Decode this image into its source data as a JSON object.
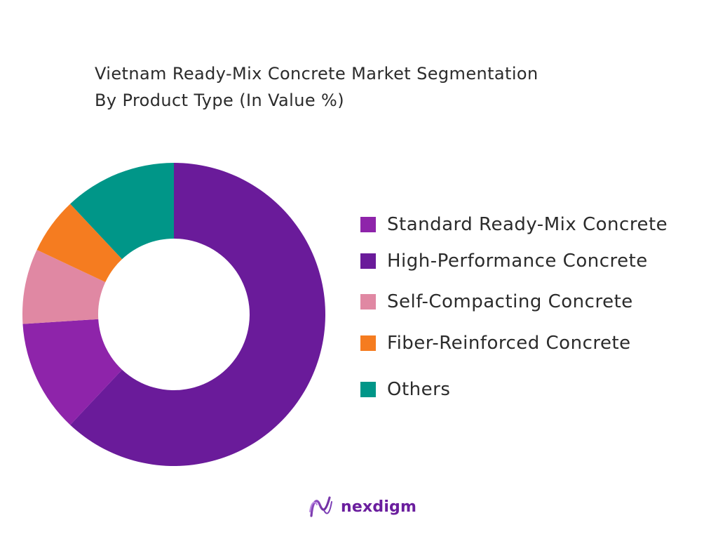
{
  "chart_data": {
    "type": "pie",
    "title_lines": [
      "Vietnam Ready-Mix Concrete Market Segmentation",
      "By Product Type (In Value %)"
    ],
    "categories": [
      "Standard Ready-Mix Concrete",
      "High-Performance Concrete",
      "Self-Compacting Concrete",
      "Fiber-Reinforced Concrete",
      "Others"
    ],
    "values": [
      12,
      62,
      8,
      6,
      12
    ],
    "colors": [
      "#8e24aa",
      "#6a1b9a",
      "#e088a3",
      "#f57c20",
      "#009688"
    ],
    "donut": true,
    "legend_position": "right"
  },
  "brand": {
    "name": "nexdigm",
    "icon": "nexdigm-logo-icon"
  }
}
